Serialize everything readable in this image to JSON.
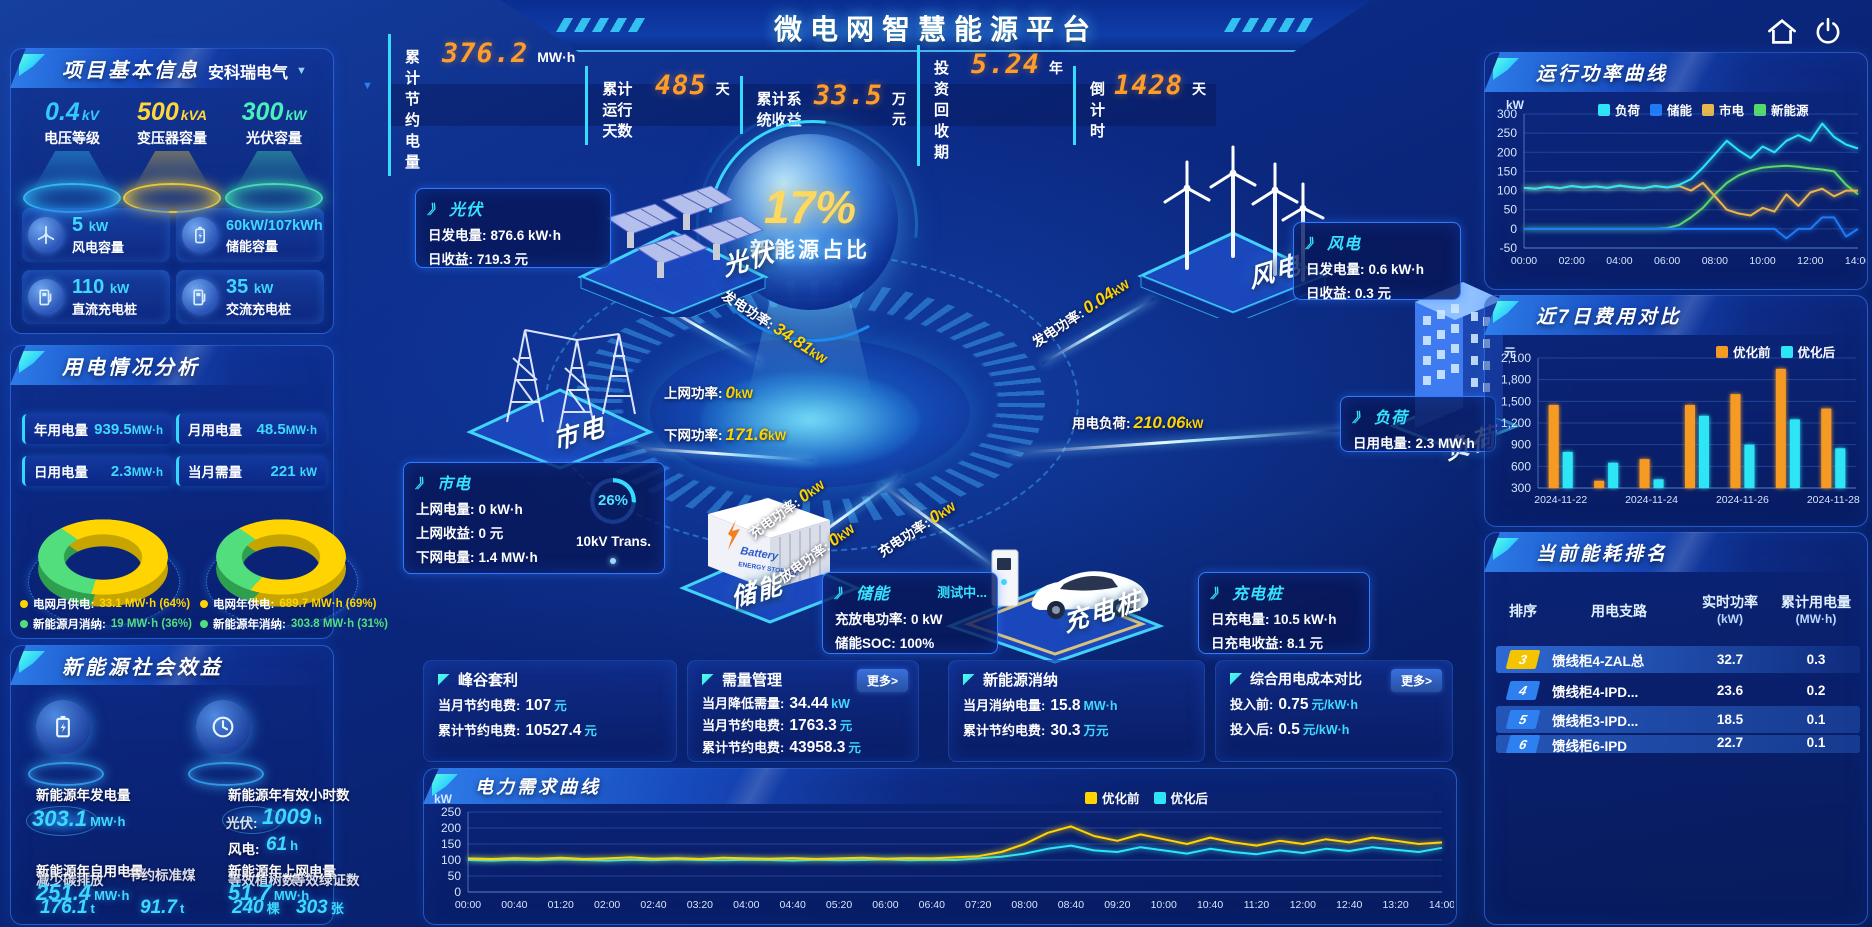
{
  "app_title": "微电网智慧能源平台",
  "glyphs": {
    "box_arrow": "》",
    "dropdown": "▼"
  },
  "topbar": {
    "stats": [
      {
        "label": "累计节约电量",
        "value": "376.2",
        "unit": "MW·h"
      },
      {
        "label": "累计运行天数",
        "value": "485",
        "unit": "天"
      },
      {
        "label": "累计系统收益",
        "value": "33.5",
        "unit": "万元"
      },
      {
        "label": "投资回收期",
        "value": "5.24",
        "unit": "年"
      },
      {
        "label": "倒计时",
        "value": "1428",
        "unit": "天"
      }
    ]
  },
  "project": {
    "title": "项目基本信息",
    "company": "安科瑞电气",
    "spotlights": [
      {
        "value": "0.4",
        "unit": "kV",
        "label": "电压等级",
        "color": "#35c8ff"
      },
      {
        "value": "500",
        "unit": "kVA",
        "label": "变压器容量",
        "color": "#ffd73a"
      },
      {
        "value": "300",
        "unit": "kW",
        "label": "光伏容量",
        "color": "#49f0b9"
      }
    ],
    "cards": [
      {
        "value": "5",
        "unit": "kW",
        "label": "风电容量"
      },
      {
        "value": "60kW/107kWh",
        "unit": "",
        "label": "储能容量"
      },
      {
        "value": "110",
        "unit": "kW",
        "label": "直流充电桩"
      },
      {
        "value": "35",
        "unit": "kW",
        "label": "交流充电桩"
      }
    ]
  },
  "usage": {
    "title": "用电情况分析",
    "stats": [
      {
        "label": "年用电量",
        "value": "939.5",
        "unit": "MW·h"
      },
      {
        "label": "月用电量",
        "value": "48.5",
        "unit": "MW·h"
      },
      {
        "label": "日用电量",
        "value": "2.3",
        "unit": "MW·h"
      },
      {
        "label": "当月需量",
        "value": "221",
        "unit": "kW"
      }
    ],
    "donut_month": {
      "grid_pct": 64,
      "renew_pct": 36
    },
    "donut_year": {
      "grid_pct": 69,
      "renew_pct": 31
    },
    "legend": [
      {
        "label": "电网月供电:",
        "value": "33.1 MW·h (64%)",
        "color": "#ffd400"
      },
      {
        "label": "电网年供电:",
        "value": "689.7 MW·h (69%)",
        "color": "#ffd400"
      },
      {
        "label": "新能源月消纳:",
        "value": "19 MW·h (36%)",
        "color": "#52de7c"
      },
      {
        "label": "新能源年消纳:",
        "value": "303.8 MW·h (31%)",
        "color": "#52de7c"
      }
    ]
  },
  "benefit": {
    "title": "新能源社会效益",
    "gen_label": "新能源年发电量",
    "gen_value": "303.1",
    "gen_unit": "MW·h",
    "hours_label": "新能源年有效小时数",
    "pv_label": "光伏:",
    "pv_value": "1009",
    "pv_unit": "h",
    "wind_label": "风电:",
    "wind_value": "61",
    "wind_unit": "h",
    "self_label": "新能源年自用电量",
    "self_value": "251.4",
    "self_unit": "MW·h",
    "carbon_label": "减少碳排放",
    "carbon_value": "176.1",
    "carbon_unit": "t",
    "coal_label": "节约标准煤",
    "coal_value": "91.7",
    "coal_unit": "t",
    "export_label": "新能源年上网电量",
    "export_value": "51.7",
    "export_unit": "MW·h",
    "trees_label": "等效植树数",
    "trees_value": "240",
    "trees_unit": "棵",
    "cert_label": "等效绿证数",
    "cert_value": "303",
    "cert_unit": "张"
  },
  "diagram": {
    "center_percent": "17%",
    "center_label": "新能源占比",
    "nodes": {
      "pv": "光伏",
      "wind": "风电",
      "grid": "市电",
      "storage": "储能",
      "ev": "充电桩",
      "load": "负荷"
    },
    "boxes": {
      "pv": {
        "title": "光伏",
        "lines": [
          {
            "label": "日发电量:",
            "value": "876.6 kW·h"
          },
          {
            "label": "日收益:",
            "value": "719.3 元"
          }
        ]
      },
      "wind": {
        "title": "风电",
        "lines": [
          {
            "label": "日发电量:",
            "value": "0.6 kW·h"
          },
          {
            "label": "日收益:",
            "value": "0.3 元"
          }
        ]
      },
      "grid": {
        "title": "市电",
        "lines": [
          {
            "label": "上网电量:",
            "value": "0 kW·h"
          },
          {
            "label": "上网收益:",
            "value": "0 元"
          },
          {
            "label": "下网电量:",
            "value": "1.4 MW·h"
          }
        ],
        "gauge_percent": "26%",
        "gauge_label": "10kV Trans."
      },
      "storage": {
        "title": "储能",
        "status": "测试中...",
        "lines": [
          {
            "label": "充放电功率:",
            "value": "0 kW"
          },
          {
            "label": "储能SOC:",
            "value": "100%"
          }
        ]
      },
      "ev": {
        "title": "充电桩",
        "lines": [
          {
            "label": "日充电量:",
            "value": "10.5 kW·h"
          },
          {
            "label": "日充电收益:",
            "value": "8.1 元"
          }
        ]
      },
      "load": {
        "title": "负荷",
        "lines": [
          {
            "label": "日用电量:",
            "value": "2.3 MW·h"
          }
        ]
      }
    },
    "flows": {
      "pv_gen": {
        "label": "发电功率:",
        "value": "34.81",
        "unit": "kW"
      },
      "wind_gen": {
        "label": "发电功率:",
        "value": "0.04",
        "unit": "kW"
      },
      "grid_up": {
        "label": "上网功率:",
        "value": "0",
        "unit": "kW"
      },
      "grid_down": {
        "label": "下网功率:",
        "value": "171.6",
        "unit": "kW"
      },
      "load_power": {
        "label": "用电负荷:",
        "value": "210.06",
        "unit": "kW"
      },
      "storage_charge": {
        "label": "充电功率:",
        "value": "0",
        "unit": "kW"
      },
      "storage_discharge": {
        "label": "放电功率:",
        "value": "0",
        "unit": "kW"
      },
      "ev_charge": {
        "label": "充电功率:",
        "value": "0",
        "unit": "kW"
      }
    }
  },
  "summary_cards": [
    {
      "title": "峰谷套利",
      "rows": [
        {
          "label": "当月节约电费:",
          "value": "107",
          "unit": "元"
        },
        {
          "label": "累计节约电费:",
          "value": "10527.4",
          "unit": "元"
        }
      ]
    },
    {
      "title": "需量管理",
      "more": "更多>",
      "rows": [
        {
          "label": "当月降低需量:",
          "value": "34.44",
          "unit": "kW"
        },
        {
          "label": "当月节约电费:",
          "value": "1763.3",
          "unit": "元"
        },
        {
          "label": "累计节约电费:",
          "value": "43958.3",
          "unit": "元"
        }
      ]
    },
    {
      "title": "新能源消纳",
      "rows": [
        {
          "label": "当月消纳电量:",
          "value": "15.8",
          "unit": "MW·h"
        },
        {
          "label": "累计节约电费:",
          "value": "30.3",
          "unit": "万元"
        }
      ]
    },
    {
      "title": "综合用电成本对比",
      "more": "更多>",
      "rows": [
        {
          "label": "投入前:",
          "value": "0.75",
          "unit": "元/kW·h"
        },
        {
          "label": "投入后:",
          "value": "0.5",
          "unit": "元/kW·h"
        }
      ]
    }
  ],
  "demand": {
    "title": "电力需求曲线"
  },
  "right": {
    "power_title": "运行功率曲线",
    "cost_title": "近7日费用对比",
    "rank_title": "当前能耗排名",
    "rank": {
      "headers": {
        "order": "排序",
        "branch": "用电支路",
        "power": "实时功率",
        "power_unit": "(kW)",
        "energy": "累计用电量",
        "energy_unit": "(MW·h)"
      },
      "rows": [
        {
          "rank": "3",
          "name": "馈线柜4-ZAL总",
          "power": "32.7",
          "energy": "0.3",
          "badge": "#f5c400"
        },
        {
          "rank": "4",
          "name": "馈线柜4-IPD...",
          "power": "23.6",
          "energy": "0.2",
          "badge": "#2e7ff0"
        },
        {
          "rank": "5",
          "name": "馈线柜3-IPD...",
          "power": "18.5",
          "energy": "0.1",
          "badge": "#2e7ff0"
        },
        {
          "rank": "6",
          "name": "馈线柜6-IPD",
          "power": "22.7",
          "energy": "0.1",
          "badge": "#2e7ff0"
        }
      ]
    }
  },
  "chart_data": [
    {
      "id": "power-curve",
      "type": "line",
      "title": "运行功率曲线",
      "ylabel": "kW",
      "ylim": [
        -50,
        300
      ],
      "ystep": 50,
      "xticks": [
        "00:00",
        "02:00",
        "04:00",
        "06:00",
        "08:00",
        "10:00",
        "12:00",
        "14:00"
      ],
      "series": [
        {
          "name": "负荷",
          "color": "#2ee5f5",
          "values": [
            107,
            105,
            110,
            106,
            112,
            108,
            111,
            107,
            113,
            109,
            106,
            112,
            108,
            115,
            130,
            160,
            195,
            230,
            205,
            185,
            215,
            200,
            230,
            245,
            230,
            275,
            240,
            220,
            210
          ]
        },
        {
          "name": "储能",
          "color": "#1f7af5",
          "values": [
            0,
            0,
            0,
            0,
            0,
            0,
            0,
            0,
            0,
            0,
            0,
            0,
            0,
            0,
            0,
            0,
            0,
            0,
            0,
            0,
            0,
            0,
            -25,
            0,
            0,
            30,
            30,
            -20,
            0
          ]
        },
        {
          "name": "市电",
          "color": "#e7b64c",
          "values": [
            107,
            105,
            110,
            106,
            112,
            108,
            111,
            107,
            113,
            109,
            106,
            112,
            108,
            112,
            100,
            120,
            85,
            50,
            40,
            35,
            55,
            45,
            90,
            60,
            95,
            105,
            85,
            100,
            100
          ]
        },
        {
          "name": "新能源",
          "color": "#55d96b",
          "values": [
            0,
            0,
            0,
            0,
            0,
            0,
            0,
            0,
            0,
            0,
            0,
            0,
            2,
            10,
            30,
            55,
            90,
            120,
            140,
            152,
            160,
            163,
            165,
            162,
            158,
            155,
            150,
            115,
            90
          ]
        }
      ],
      "legend_position": "top",
      "grid": true
    },
    {
      "id": "cost-compare",
      "type": "bar",
      "title": "近7日费用对比",
      "ylabel": "元",
      "ylim": [
        300,
        2100
      ],
      "ystep": 300,
      "xtick_every": 2,
      "categories": [
        "2024-11-22",
        "2024-11-23",
        "2024-11-24",
        "2024-11-25",
        "2024-11-26",
        "2024-11-27",
        "2024-11-28"
      ],
      "series": [
        {
          "name": "优化前",
          "color": "#f59a23",
          "values": [
            1450,
            400,
            700,
            1450,
            1600,
            1950,
            1400
          ]
        },
        {
          "name": "优化后",
          "color": "#2ee5f5",
          "values": [
            800,
            650,
            420,
            1300,
            900,
            1250,
            850
          ]
        }
      ],
      "legend_position": "top-right",
      "grid": true
    },
    {
      "id": "demand-curve",
      "type": "line",
      "title": "电力需求曲线",
      "ylabel": "kW",
      "ylim": [
        0,
        250
      ],
      "ystep": 50,
      "xticks": [
        "00:00",
        "00:40",
        "01:20",
        "02:00",
        "02:40",
        "03:20",
        "04:00",
        "04:40",
        "05:20",
        "06:00",
        "06:40",
        "07:20",
        "08:00",
        "08:40",
        "09:20",
        "10:00",
        "10:40",
        "11:20",
        "12:00",
        "12:40",
        "13:20",
        "14:00"
      ],
      "series": [
        {
          "name": "优化前",
          "color": "#ffd400",
          "values": [
            105,
            103,
            106,
            104,
            107,
            103,
            105,
            108,
            104,
            106,
            103,
            107,
            105,
            104,
            106,
            103,
            105,
            107,
            104,
            106,
            105,
            108,
            112,
            125,
            150,
            185,
            205,
            175,
            160,
            180,
            165,
            150,
            170,
            155,
            145,
            160,
            150,
            165,
            155,
            170,
            160,
            150,
            155
          ]
        },
        {
          "name": "优化后",
          "color": "#2ee5f5",
          "values": [
            100,
            98,
            101,
            99,
            102,
            100,
            98,
            101,
            99,
            102,
            100,
            99,
            101,
            100,
            98,
            101,
            99,
            100,
            102,
            99,
            101,
            100,
            105,
            110,
            120,
            135,
            145,
            130,
            125,
            140,
            130,
            120,
            135,
            125,
            118,
            130,
            122,
            135,
            128,
            140,
            132,
            125,
            138
          ]
        }
      ],
      "legend_position": "top-right",
      "grid": true
    }
  ]
}
